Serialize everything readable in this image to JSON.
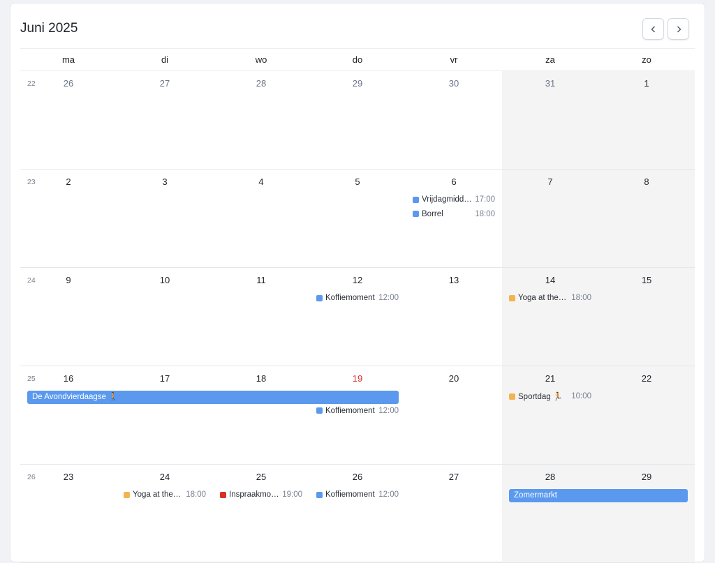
{
  "header": {
    "title": "Juni 2025",
    "prev_label": "‹",
    "next_label": "›",
    "prev_icon": "chevron-left-icon",
    "next_icon": "chevron-right-icon"
  },
  "colors": {
    "blue": "#5a99ee",
    "orange": "#f2b450",
    "red": "#d93025",
    "today": "#e03131"
  },
  "weekdays": [
    "ma",
    "di",
    "wo",
    "do",
    "vr",
    "za",
    "zo"
  ],
  "weeks": [
    {
      "number": "22",
      "days": [
        {
          "n": "26",
          "other": true
        },
        {
          "n": "27",
          "other": true
        },
        {
          "n": "28",
          "other": true
        },
        {
          "n": "29",
          "other": true
        },
        {
          "n": "30",
          "other": true
        },
        {
          "n": "31",
          "other": true
        },
        {
          "n": "1"
        }
      ],
      "events": []
    },
    {
      "number": "23",
      "days": [
        {
          "n": "2"
        },
        {
          "n": "3"
        },
        {
          "n": "4"
        },
        {
          "n": "5"
        },
        {
          "n": "6"
        },
        {
          "n": "7"
        },
        {
          "n": "8"
        }
      ],
      "events": [
        {
          "day": 4,
          "title": "Vrijdagmiddagborrel",
          "time": "17:00",
          "color": "blue"
        },
        {
          "day": 4,
          "title": "Borrel",
          "time": "18:00",
          "color": "blue"
        }
      ]
    },
    {
      "number": "24",
      "days": [
        {
          "n": "9"
        },
        {
          "n": "10"
        },
        {
          "n": "11"
        },
        {
          "n": "12"
        },
        {
          "n": "13"
        },
        {
          "n": "14"
        },
        {
          "n": "15"
        }
      ],
      "events": [
        {
          "day": 3,
          "title": "Koffiemoment",
          "time": "12:00",
          "color": "blue"
        },
        {
          "day": 5,
          "title": "Yoga at the lake",
          "time": "18:00",
          "color": "orange"
        }
      ]
    },
    {
      "number": "25",
      "days": [
        {
          "n": "16"
        },
        {
          "n": "17"
        },
        {
          "n": "18"
        },
        {
          "n": "19",
          "today": true
        },
        {
          "n": "20"
        },
        {
          "n": "21"
        },
        {
          "n": "22"
        }
      ],
      "events": [
        {
          "day": 0,
          "span": 4,
          "title": "De Avondvierdaagse 🚶",
          "color": "blue"
        },
        {
          "day": 3,
          "title": "Koffiemoment",
          "time": "12:00",
          "color": "blue"
        },
        {
          "day": 5,
          "title": "Sportdag 🏃",
          "time": "10:00",
          "color": "orange"
        }
      ]
    },
    {
      "number": "26",
      "days": [
        {
          "n": "23"
        },
        {
          "n": "24"
        },
        {
          "n": "25"
        },
        {
          "n": "26"
        },
        {
          "n": "27"
        },
        {
          "n": "28"
        },
        {
          "n": "29"
        }
      ],
      "events": [
        {
          "day": 1,
          "title": "Yoga at the lake",
          "time": "18:00",
          "color": "orange"
        },
        {
          "day": 2,
          "title": "Inspraakmoment",
          "time": "19:00",
          "color": "red"
        },
        {
          "day": 3,
          "title": "Koffiemoment",
          "time": "12:00",
          "color": "blue"
        },
        {
          "day": 5,
          "span": 2,
          "title": "Zomermarkt",
          "color": "blue"
        }
      ]
    }
  ]
}
